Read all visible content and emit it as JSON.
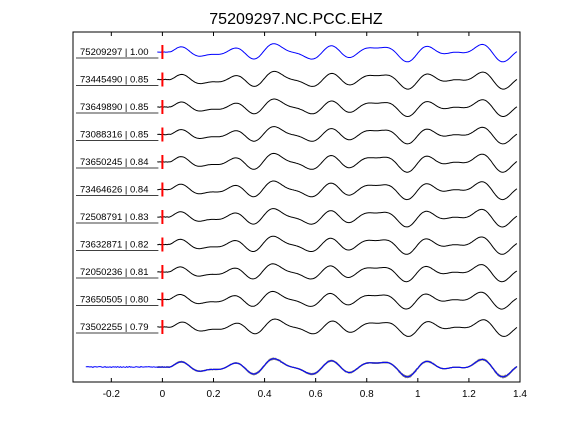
{
  "chart_data": {
    "type": "line",
    "title": "75209297.NC.PCC.EHZ",
    "xlabel": "",
    "ylabel": "",
    "xlim": [
      -0.35,
      1.4
    ],
    "x_ticks": [
      -0.2,
      0,
      0.2,
      0.4,
      0.6,
      0.8,
      1,
      1.2,
      1.4
    ],
    "x_tick_labels": [
      "-0.2",
      "0",
      "0.2",
      "0.4",
      "0.6",
      "0.8",
      "1",
      "1.2",
      "1.4"
    ],
    "pick_time": 0,
    "colors": {
      "reference": "#0000ff",
      "trace": "#000000",
      "overlay": "#808080",
      "pick": "#ff0000"
    },
    "traces": [
      {
        "event_id": "75209297",
        "cc": "1.00",
        "label": "75209297 | 1.00",
        "reference": true
      },
      {
        "event_id": "73445490",
        "cc": "0.85",
        "label": "73445490 | 0.85"
      },
      {
        "event_id": "73649890",
        "cc": "0.85",
        "label": "73649890 | 0.85"
      },
      {
        "event_id": "73088316",
        "cc": "0.85",
        "label": "73088316 | 0.85"
      },
      {
        "event_id": "73650245",
        "cc": "0.84",
        "label": "73650245 | 0.84"
      },
      {
        "event_id": "73464626",
        "cc": "0.84",
        "label": "73464626 | 0.84"
      },
      {
        "event_id": "72508791",
        "cc": "0.83",
        "label": "72508791 | 0.83"
      },
      {
        "event_id": "73632871",
        "cc": "0.82",
        "label": "73632871 | 0.82"
      },
      {
        "event_id": "72050236",
        "cc": "0.81",
        "label": "72050236 | 0.81"
      },
      {
        "event_id": "73650505",
        "cc": "0.80",
        "label": "73650505 | 0.80"
      },
      {
        "event_id": "73502255",
        "cc": "0.79",
        "label": "73502255 | 0.79"
      }
    ],
    "stack_row": {
      "description_visible": false
    }
  }
}
